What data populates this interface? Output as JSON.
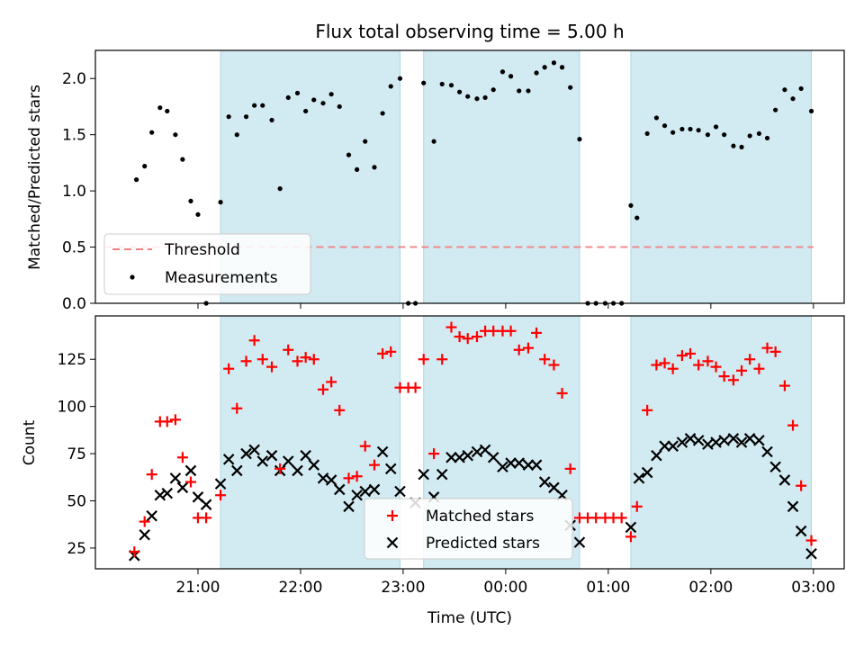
{
  "title": "Flux total observing time = 5.00 h",
  "colors": {
    "band": "#add8e6",
    "threshold": "#f08080",
    "matched": "#ff0000",
    "predicted": "#000000"
  },
  "chart_data": [
    {
      "type": "scatter",
      "ylabel": "Matched/Predicted stars",
      "ylim": [
        0,
        2.25
      ],
      "yticks": [
        0.0,
        0.5,
        1.0,
        1.5,
        2.0
      ],
      "xlim_hours": [
        20.0,
        27.3
      ],
      "threshold": {
        "name": "Threshold",
        "value": 0.5,
        "x_range": [
          20.1,
          27.0
        ]
      },
      "legend": {
        "placement": "lower-left",
        "entries": [
          "Threshold",
          "Measurements"
        ]
      },
      "series": [
        {
          "name": "Measurements",
          "x": [
            20.4,
            20.48,
            20.55,
            20.63,
            20.7,
            20.78,
            20.85,
            20.93,
            21.0,
            21.08,
            21.22,
            21.3,
            21.38,
            21.47,
            21.55,
            21.63,
            21.72,
            21.8,
            21.88,
            21.97,
            22.05,
            22.13,
            22.22,
            22.3,
            22.38,
            22.47,
            22.55,
            22.63,
            22.72,
            22.8,
            22.88,
            22.97,
            23.05,
            23.12,
            23.2,
            23.3,
            23.38,
            23.47,
            23.55,
            23.63,
            23.72,
            23.8,
            23.88,
            23.97,
            24.05,
            24.13,
            24.22,
            24.3,
            24.38,
            24.47,
            24.55,
            24.63,
            24.72,
            24.8,
            24.88,
            24.97,
            25.05,
            25.13,
            25.22,
            25.28,
            25.38,
            25.47,
            25.55,
            25.63,
            25.72,
            25.8,
            25.88,
            25.97,
            26.05,
            26.13,
            26.22,
            26.3,
            26.38,
            26.47,
            26.55,
            26.63,
            26.72,
            26.8,
            26.88,
            26.98
          ],
          "values": [
            1.1,
            1.22,
            1.52,
            1.74,
            1.71,
            1.5,
            1.28,
            0.91,
            0.79,
            0.0,
            0.9,
            1.66,
            1.5,
            1.66,
            1.76,
            1.76,
            1.63,
            1.02,
            1.83,
            1.87,
            1.71,
            1.81,
            1.78,
            1.86,
            1.75,
            1.32,
            1.19,
            1.44,
            1.21,
            1.69,
            1.93,
            2.0,
            0.0,
            0.0,
            1.96,
            1.44,
            1.95,
            1.94,
            1.88,
            1.84,
            1.82,
            1.83,
            1.9,
            2.06,
            2.02,
            1.89,
            1.89,
            2.05,
            2.1,
            2.14,
            2.1,
            1.92,
            1.46,
            0.0,
            0.0,
            0.0,
            0.0,
            0.0,
            0.87,
            0.76,
            1.51,
            1.65,
            1.58,
            1.52,
            1.55,
            1.55,
            1.54,
            1.5,
            1.57,
            1.5,
            1.4,
            1.39,
            1.49,
            1.51,
            1.47,
            1.72,
            1.9,
            1.82,
            1.91,
            1.71
          ]
        }
      ]
    },
    {
      "type": "scatter",
      "xlabel": "Time (UTC)",
      "ylabel": "Count",
      "ylim": [
        14,
        148
      ],
      "yticks": [
        25,
        50,
        75,
        100,
        125
      ],
      "xlim_hours": [
        20.0,
        27.3
      ],
      "xticks": [
        "21:00",
        "22:00",
        "23:00",
        "00:00",
        "01:00",
        "02:00",
        "03:00"
      ],
      "xtick_hours": [
        21,
        22,
        23,
        24,
        25,
        26,
        27
      ],
      "legend": {
        "placement": "lower-center",
        "entries": [
          "Matched stars",
          "Predicted stars"
        ]
      },
      "series": [
        {
          "name": "Matched stars",
          "x": [
            20.38,
            20.48,
            20.55,
            20.63,
            20.7,
            20.78,
            20.85,
            20.93,
            21.0,
            21.08,
            21.22,
            21.3,
            21.38,
            21.47,
            21.55,
            21.63,
            21.72,
            21.8,
            21.88,
            21.97,
            22.05,
            22.13,
            22.22,
            22.3,
            22.38,
            22.47,
            22.55,
            22.63,
            22.72,
            22.8,
            22.88,
            22.97,
            23.05,
            23.12,
            23.2,
            23.3,
            23.38,
            23.47,
            23.55,
            23.63,
            23.72,
            23.8,
            23.88,
            23.97,
            24.05,
            24.13,
            24.22,
            24.3,
            24.38,
            24.47,
            24.55,
            24.63,
            24.72,
            24.8,
            24.88,
            24.97,
            25.05,
            25.13,
            25.22,
            25.28,
            25.38,
            25.47,
            25.55,
            25.63,
            25.72,
            25.8,
            25.88,
            25.97,
            26.05,
            26.13,
            26.22,
            26.3,
            26.38,
            26.47,
            26.55,
            26.63,
            26.72,
            26.8,
            26.88,
            26.98
          ],
          "values": [
            23,
            39,
            64,
            92,
            92,
            93,
            73,
            60,
            41,
            41,
            53,
            120,
            99,
            124,
            135,
            125,
            121,
            67,
            130,
            124,
            126,
            125,
            109,
            113,
            98,
            62,
            63,
            79,
            69,
            128,
            129,
            110,
            110,
            110,
            125,
            75,
            125,
            142,
            137,
            136,
            137,
            140,
            140,
            140,
            140,
            130,
            131,
            139,
            125,
            122,
            107,
            67,
            41,
            41,
            41,
            41,
            41,
            41,
            31,
            47,
            98,
            122,
            123,
            120,
            127,
            128,
            122,
            124,
            121,
            116,
            114,
            119,
            125,
            120,
            131,
            129,
            111,
            90,
            58,
            29
          ]
        },
        {
          "name": "Predicted stars",
          "x": [
            20.38,
            20.48,
            20.55,
            20.63,
            20.7,
            20.78,
            20.85,
            20.93,
            21.0,
            21.08,
            21.22,
            21.3,
            21.38,
            21.47,
            21.55,
            21.63,
            21.72,
            21.8,
            21.88,
            21.97,
            22.05,
            22.13,
            22.22,
            22.3,
            22.38,
            22.47,
            22.55,
            22.63,
            22.72,
            22.8,
            22.88,
            22.97,
            23.12,
            23.2,
            23.3,
            23.38,
            23.47,
            23.55,
            23.63,
            23.72,
            23.8,
            23.88,
            23.97,
            24.05,
            24.13,
            24.22,
            24.3,
            24.38,
            24.47,
            24.55,
            24.63,
            24.72,
            25.22,
            25.3,
            25.38,
            25.47,
            25.55,
            25.63,
            25.72,
            25.8,
            25.88,
            25.97,
            26.05,
            26.13,
            26.22,
            26.3,
            26.38,
            26.47,
            26.55,
            26.63,
            26.72,
            26.8,
            26.88,
            26.98
          ],
          "values": [
            21,
            32,
            42,
            53,
            54,
            62,
            57,
            66,
            52,
            48,
            59,
            72,
            66,
            75,
            77,
            71,
            74,
            66,
            71,
            66,
            74,
            69,
            62,
            61,
            56,
            47,
            53,
            55,
            56,
            76,
            67,
            55,
            49,
            64,
            52,
            64,
            73,
            73,
            74,
            76,
            77,
            73,
            68,
            70,
            70,
            69,
            69,
            60,
            57,
            53,
            37,
            28,
            36,
            62,
            65,
            74,
            79,
            79,
            81,
            83,
            82,
            80,
            81,
            82,
            83,
            81,
            83,
            82,
            76,
            68,
            61,
            47,
            34,
            22
          ]
        }
      ]
    }
  ],
  "bands_hours": [
    [
      21.22,
      22.97
    ],
    [
      23.2,
      24.72
    ],
    [
      25.22,
      26.98
    ]
  ]
}
